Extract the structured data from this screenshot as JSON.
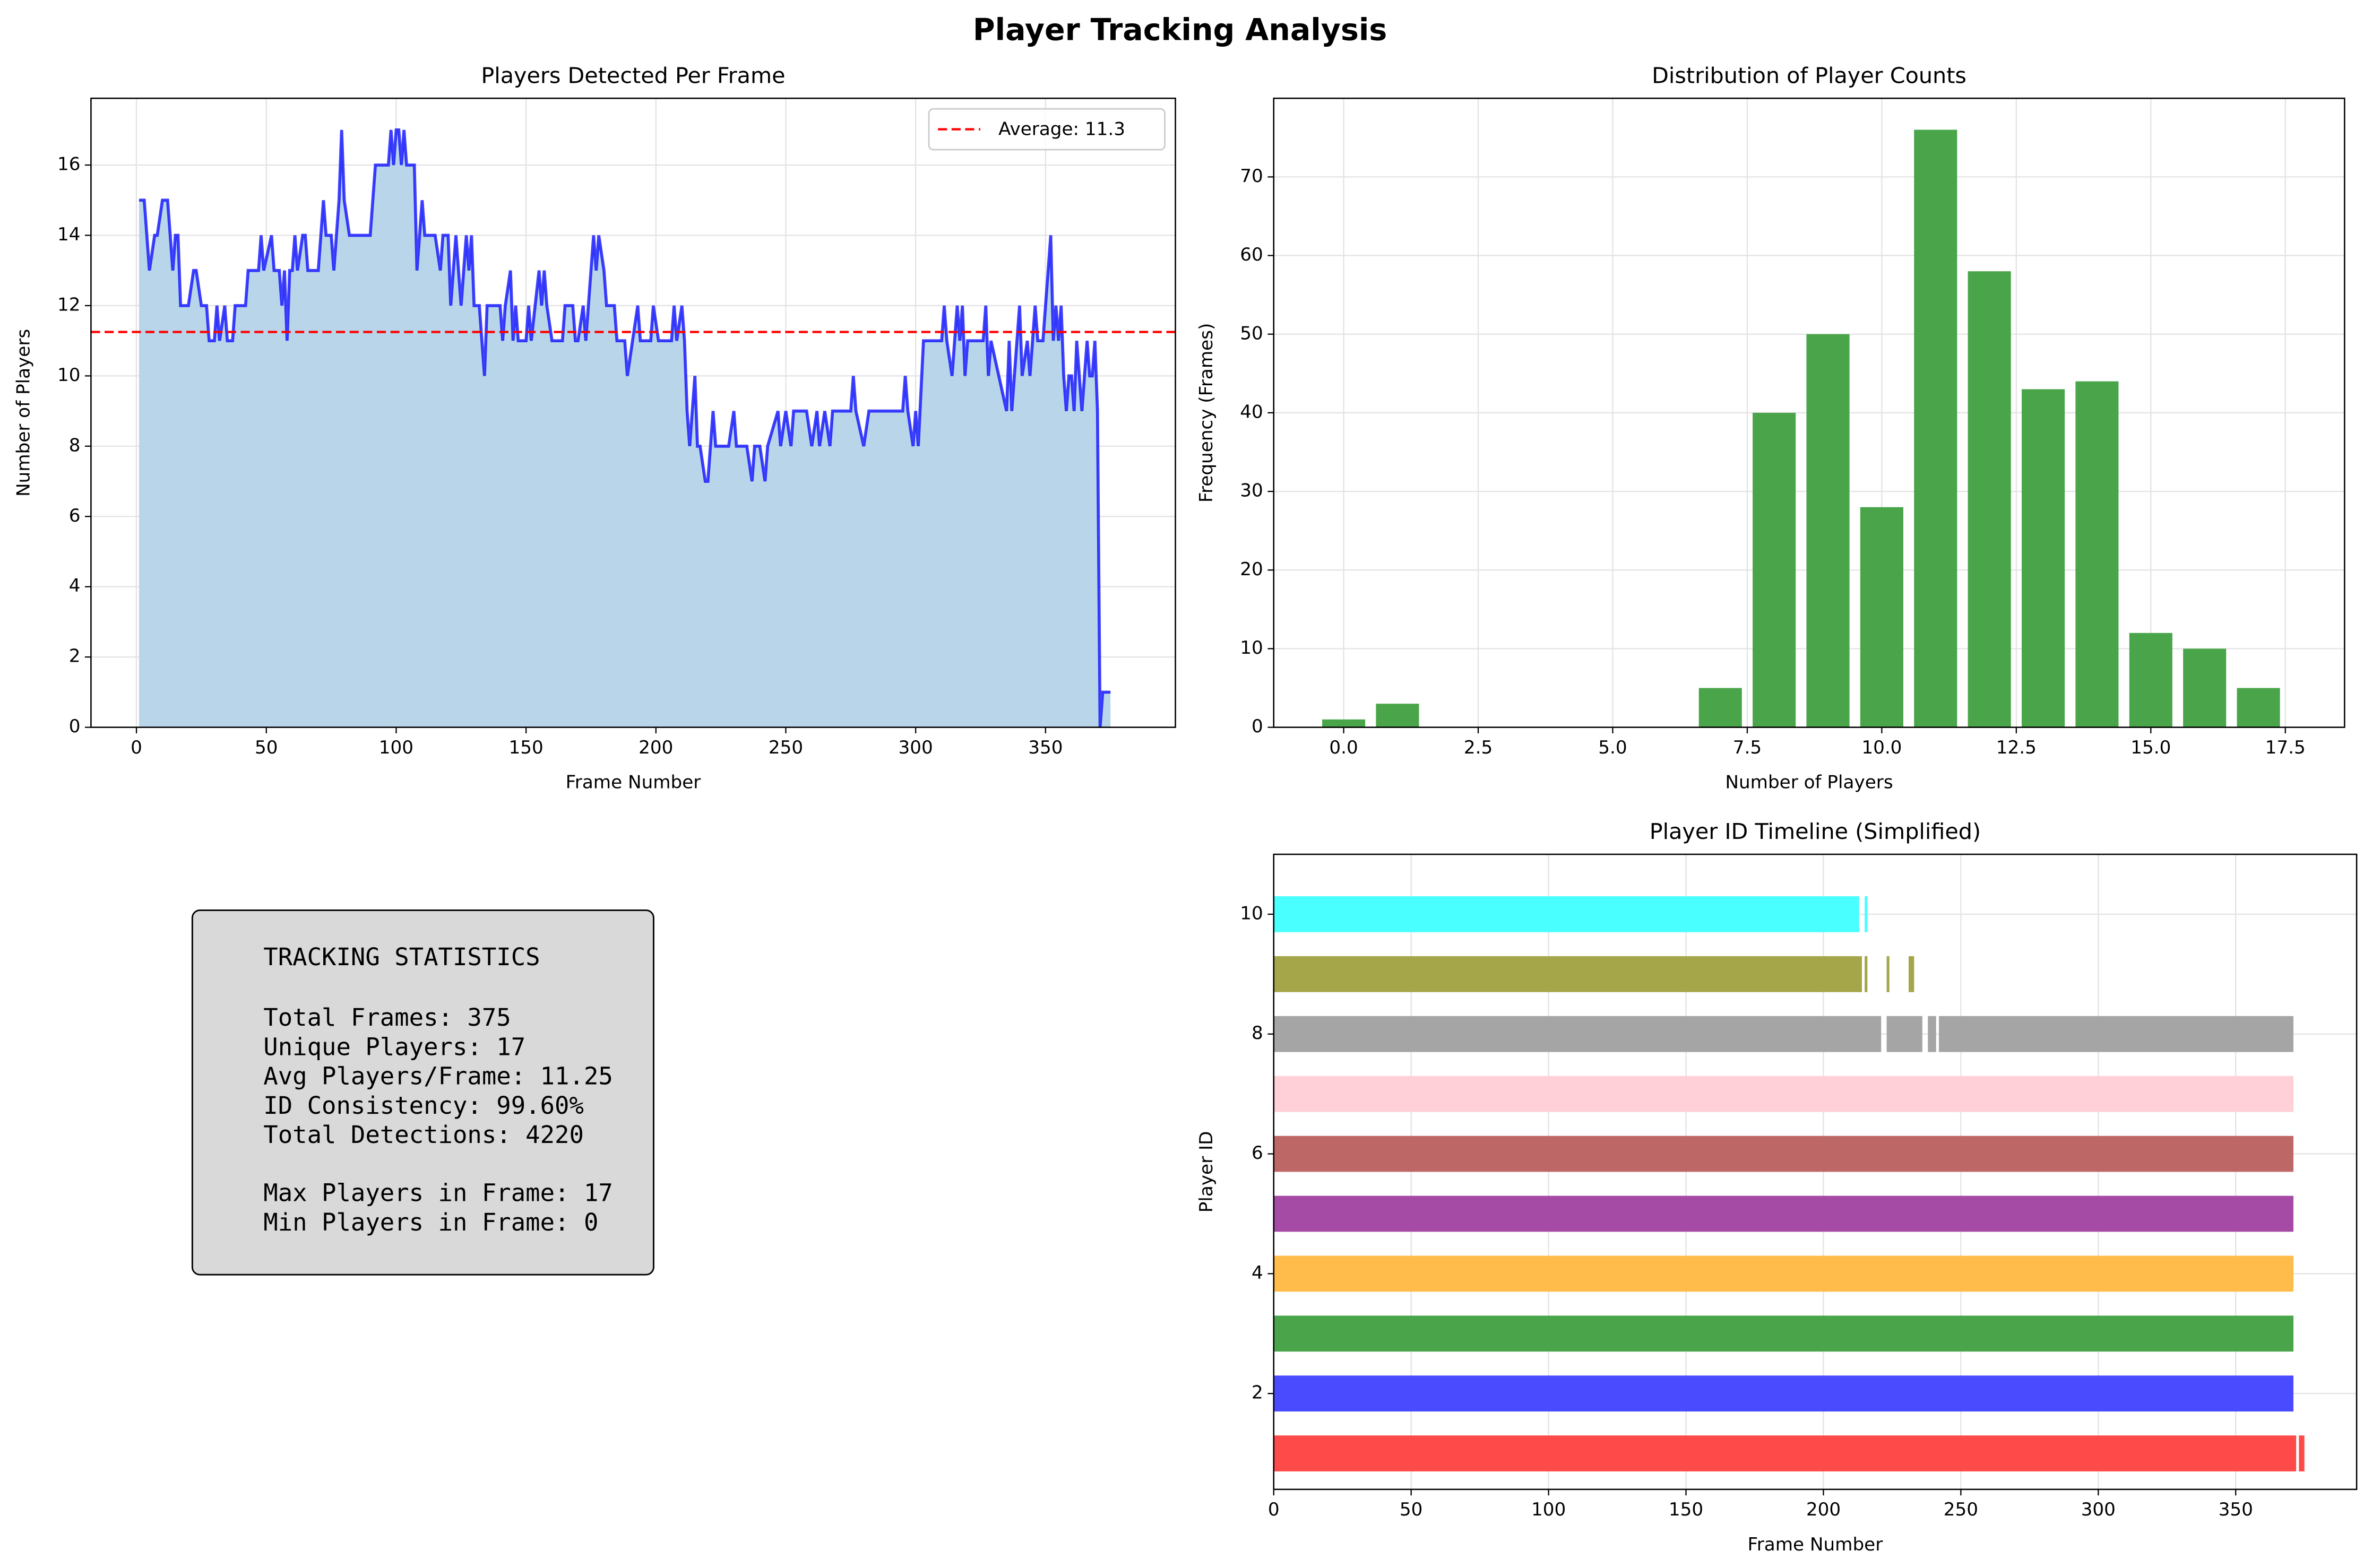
{
  "title": "Player Tracking Analysis",
  "chart_data": [
    {
      "type": "line",
      "title": "Players Detected Per Frame",
      "xlabel": "Frame Number",
      "ylabel": "Number of Players",
      "x": [
        1,
        3,
        5,
        7,
        8,
        10,
        12,
        14,
        15,
        16,
        17,
        20,
        22,
        23,
        25,
        27,
        28,
        30,
        31,
        32,
        34,
        35,
        37,
        38,
        42,
        43,
        47,
        48,
        49,
        52,
        53,
        55,
        56,
        57,
        58,
        59,
        60,
        61,
        62,
        64,
        65,
        66,
        70,
        71,
        72,
        73,
        75,
        76,
        77,
        78,
        79,
        80,
        82,
        90,
        91,
        92,
        97,
        98,
        99,
        100,
        101,
        102,
        103,
        104,
        107,
        108,
        109,
        110,
        111,
        115,
        117,
        118,
        120,
        121,
        123,
        125,
        126,
        127,
        128,
        129,
        130,
        132,
        133,
        134,
        135,
        140,
        141,
        142,
        144,
        145,
        146,
        147,
        150,
        151,
        152,
        155,
        156,
        157,
        158,
        160,
        164,
        165,
        168,
        169,
        170,
        172,
        173,
        175,
        176,
        177,
        178,
        180,
        181,
        184,
        185,
        188,
        189,
        191,
        193,
        194,
        198,
        199,
        201,
        206,
        207,
        208,
        210,
        211,
        212,
        213,
        215,
        216,
        217,
        219,
        220,
        222,
        223,
        228,
        230,
        231,
        235,
        237,
        238,
        240,
        242,
        243,
        247,
        248,
        250,
        252,
        253,
        258,
        260,
        262,
        263,
        265,
        267,
        268,
        275,
        276,
        277,
        280,
        282,
        295,
        296,
        297,
        299,
        300,
        301,
        303,
        310,
        311,
        312,
        314,
        316,
        317,
        318,
        319,
        320,
        326,
        327,
        328,
        329,
        335,
        336,
        337,
        338,
        340,
        341,
        343,
        344,
        346,
        347,
        349,
        350,
        352,
        353,
        354,
        355,
        356,
        357,
        358,
        359,
        360,
        361,
        362,
        363,
        364,
        365,
        366,
        367,
        368,
        369,
        370,
        371,
        372,
        375
      ],
      "values": [
        15,
        15,
        13,
        14,
        14,
        15,
        15,
        13,
        14,
        14,
        12,
        12,
        13,
        13,
        12,
        12,
        11,
        11,
        12,
        11,
        12,
        11,
        11,
        12,
        12,
        13,
        13,
        14,
        13,
        14,
        13,
        13,
        12,
        13,
        11,
        13,
        13,
        14,
        13,
        14,
        14,
        13,
        13,
        14,
        15,
        14,
        14,
        13,
        14,
        15,
        17,
        15,
        14,
        14,
        15,
        16,
        16,
        17,
        16,
        17,
        17,
        16,
        17,
        16,
        16,
        13,
        14,
        15,
        14,
        14,
        13,
        14,
        14,
        12,
        14,
        12,
        13,
        14,
        13,
        14,
        12,
        12,
        11,
        10,
        12,
        12,
        11,
        12,
        13,
        11,
        12,
        11,
        11,
        12,
        11,
        13,
        12,
        13,
        12,
        11,
        11,
        12,
        12,
        11,
        11,
        12,
        11,
        13,
        14,
        13,
        14,
        13,
        12,
        12,
        11,
        11,
        10,
        11,
        12,
        11,
        11,
        12,
        11,
        11,
        12,
        11,
        12,
        11,
        9,
        8,
        10,
        8,
        8,
        7,
        7,
        9,
        8,
        8,
        9,
        8,
        8,
        7,
        8,
        8,
        7,
        8,
        9,
        8,
        9,
        8,
        9,
        9,
        8,
        9,
        8,
        9,
        8,
        9,
        9,
        10,
        9,
        8,
        9,
        9,
        10,
        9,
        8,
        9,
        8,
        11,
        11,
        12,
        11,
        10,
        12,
        11,
        12,
        10,
        11,
        11,
        12,
        10,
        11,
        9,
        11,
        9,
        10,
        12,
        10,
        11,
        10,
        12,
        11,
        11,
        12,
        14,
        11,
        12,
        11,
        12,
        10,
        9,
        10,
        10,
        9,
        11,
        10,
        9,
        10,
        11,
        10,
        10,
        11,
        9,
        0,
        1,
        1
      ],
      "color": "#0000ff",
      "fill_color": "#b8d5e9",
      "xlim": [
        -17.5,
        400
      ],
      "ylim": [
        0,
        17.9
      ],
      "xticks": [
        0,
        50,
        100,
        150,
        200,
        250,
        300,
        350
      ],
      "yticks": [
        0,
        2,
        4,
        6,
        8,
        10,
        12,
        14,
        16
      ],
      "grid": true,
      "hline": {
        "value": 11.25,
        "name": "Average: 11.3",
        "color": "#ff0000"
      },
      "legend": "upper right"
    },
    {
      "type": "bar",
      "title": "Distribution of Player Counts",
      "xlabel": "Number of Players",
      "ylabel": "Frequency (Frames)",
      "x": [
        0,
        1,
        7,
        8,
        9,
        10,
        11,
        12,
        13,
        14,
        15,
        16,
        17
      ],
      "values": [
        1,
        3,
        5,
        40,
        50,
        28,
        76,
        58,
        43,
        44,
        12,
        10,
        5
      ],
      "color": "#4aa54a",
      "xlim": [
        -1.3,
        18.6
      ],
      "ylim": [
        0,
        80
      ],
      "xticks": [
        {
          "value": 0,
          "label": "0.0"
        },
        2.5,
        {
          "value": 5,
          "label": "5.0"
        },
        7.5,
        {
          "value": 10,
          "label": "10.0"
        },
        12.5,
        {
          "value": 15,
          "label": "15.0"
        },
        17.5
      ],
      "yticks": [
        0,
        10,
        20,
        30,
        40,
        50,
        60,
        70
      ],
      "grid": true
    },
    {
      "type": "broken_barh",
      "title": "Player ID Timeline (Simplified)",
      "xlabel": "Frame Number",
      "ylabel": "Player ID",
      "series": [
        {
          "y": 1,
          "color": "#ff4a4a",
          "segments": [
            [
              0,
              372
            ],
            [
              373,
              375
            ]
          ]
        },
        {
          "y": 2,
          "color": "#4a4aff",
          "segments": [
            [
              0,
              371
            ]
          ]
        },
        {
          "y": 3,
          "color": "#4aa54a",
          "segments": [
            [
              0,
              371
            ]
          ]
        },
        {
          "y": 4,
          "color": "#ffbc4a",
          "segments": [
            [
              0,
              371
            ]
          ]
        },
        {
          "y": 5,
          "color": "#a54aa5",
          "segments": [
            [
              0,
              371
            ]
          ]
        },
        {
          "y": 6,
          "color": "#be6767",
          "segments": [
            [
              0,
              371
            ]
          ]
        },
        {
          "y": 7,
          "color": "#ffd0d7",
          "segments": [
            [
              0,
              371
            ]
          ]
        },
        {
          "y": 8,
          "color": "#a5a5a5",
          "segments": [
            [
              0,
              221
            ],
            [
              223,
              236
            ],
            [
              238,
              241
            ],
            [
              242,
              371
            ]
          ]
        },
        {
          "y": 9,
          "color": "#a5a54a",
          "segments": [
            [
              0,
              214
            ],
            [
              215,
              216
            ],
            [
              223,
              224
            ],
            [
              231,
              233
            ]
          ]
        },
        {
          "y": 10,
          "color": "#4affff",
          "segments": [
            [
              0,
              213
            ],
            [
              215,
              216
            ]
          ]
        }
      ],
      "xlim": [
        0,
        394
      ],
      "ylim": [
        0.4,
        11
      ],
      "xticks": [
        0,
        50,
        100,
        150,
        200,
        250,
        300,
        350
      ],
      "yticks": [
        2,
        4,
        6,
        8,
        10
      ],
      "grid": true
    }
  ],
  "stats": {
    "title": "TRACKING STATISTICS",
    "groups": [
      [
        "Total Frames: 375",
        "Unique Players: 17",
        "Avg Players/Frame: 11.25",
        "ID Consistency: 99.60%",
        "Total Detections: 4220"
      ],
      [
        "Max Players in Frame: 17",
        "Min Players in Frame: 0"
      ]
    ]
  }
}
